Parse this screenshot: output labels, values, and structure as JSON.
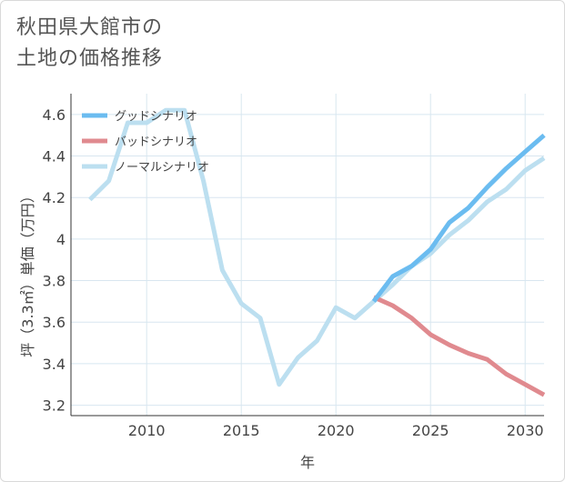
{
  "title": {
    "line1": "秋田県大館市の",
    "line2": "土地の価格推移"
  },
  "chart_data": {
    "type": "line",
    "title": "秋田県大館市の土地の価格推移",
    "xlabel": "年",
    "ylabel": "坪（3.3㎡）単価（万円）",
    "xlim": [
      2006,
      2031
    ],
    "ylim": [
      3.15,
      4.7
    ],
    "xticks": [
      2010,
      2015,
      2020,
      2025,
      2030
    ],
    "yticks": [
      3.2,
      3.4,
      3.6,
      3.8,
      4,
      4.2,
      4.4,
      4.6
    ],
    "ytick_labels": [
      "3.2",
      "3.4",
      "3.6",
      "3.8",
      "4",
      "4.2",
      "4.4",
      "4.6"
    ],
    "grid": true,
    "legend_position": "top-left",
    "series": [
      {
        "name": "グッドシナリオ",
        "color": "#6bbcf0",
        "x": [
          2022,
          2023,
          2024,
          2025,
          2026,
          2027,
          2028,
          2029,
          2030,
          2031
        ],
        "y": [
          3.7,
          3.82,
          3.87,
          3.95,
          4.08,
          4.15,
          4.25,
          4.34,
          4.42,
          4.5
        ]
      },
      {
        "name": "バッドシナリオ",
        "color": "#e08a8f",
        "x": [
          2022,
          2023,
          2024,
          2025,
          2026,
          2027,
          2028,
          2029,
          2030,
          2031
        ],
        "y": [
          3.72,
          3.68,
          3.62,
          3.54,
          3.49,
          3.45,
          3.42,
          3.35,
          3.3,
          3.25
        ]
      },
      {
        "name": "ノーマルシナリオ",
        "color": "#bcdff0",
        "x": [
          2007,
          2008,
          2009,
          2010,
          2011,
          2012,
          2013,
          2014,
          2015,
          2016,
          2017,
          2018,
          2019,
          2020,
          2021,
          2022,
          2023,
          2024,
          2025,
          2026,
          2027,
          2028,
          2029,
          2030,
          2031
        ],
        "y": [
          4.19,
          4.28,
          4.56,
          4.56,
          4.62,
          4.62,
          4.28,
          3.85,
          3.69,
          3.62,
          3.3,
          3.43,
          3.51,
          3.67,
          3.62,
          3.7,
          3.78,
          3.87,
          3.93,
          4.02,
          4.09,
          4.18,
          4.24,
          4.33,
          4.39
        ]
      }
    ]
  }
}
